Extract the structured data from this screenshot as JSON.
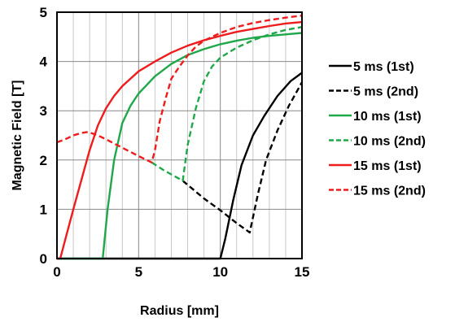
{
  "chart_data": {
    "type": "line",
    "title": "",
    "xlabel": "Radius [mm]",
    "ylabel": "Magnetic Field [T]",
    "xlim": [
      0,
      15
    ],
    "ylim": [
      0,
      5
    ],
    "xticks": [
      "0",
      "5",
      "10",
      "15"
    ],
    "yticks": [
      "0",
      "1",
      "2",
      "3",
      "4",
      "5"
    ],
    "grid": "on",
    "legend_position": "right",
    "series": [
      {
        "name": "5 ms (1st)",
        "color": "#000000",
        "dash": "solid",
        "points": [
          [
            0,
            0
          ],
          [
            10,
            0
          ],
          [
            10.3,
            0.4
          ],
          [
            10.8,
            1.2
          ],
          [
            11.3,
            1.9
          ],
          [
            12,
            2.5
          ],
          [
            12.7,
            2.9
          ],
          [
            13.5,
            3.3
          ],
          [
            14.3,
            3.6
          ],
          [
            15,
            3.77
          ]
        ]
      },
      {
        "name": "5 ms (2nd)",
        "color": "#000000",
        "dash": "dashed",
        "points": [
          [
            7.7,
            1.58
          ],
          [
            9,
            1.22
          ],
          [
            10,
            0.98
          ],
          [
            11,
            0.72
          ],
          [
            11.8,
            0.53
          ],
          [
            12.3,
            1.3
          ],
          [
            12.8,
            2.0
          ],
          [
            13.5,
            2.6
          ],
          [
            14.2,
            3.1
          ],
          [
            15,
            3.58
          ]
        ]
      },
      {
        "name": "10 ms (1st)",
        "color": "#1fa84a",
        "dash": "solid",
        "points": [
          [
            0,
            0
          ],
          [
            2.8,
            0
          ],
          [
            3.1,
            1.0
          ],
          [
            3.5,
            2.0
          ],
          [
            4,
            2.75
          ],
          [
            4.5,
            3.1
          ],
          [
            5,
            3.35
          ],
          [
            6,
            3.7
          ],
          [
            7,
            3.95
          ],
          [
            8,
            4.13
          ],
          [
            9,
            4.25
          ],
          [
            10,
            4.35
          ],
          [
            11,
            4.42
          ],
          [
            12,
            4.48
          ],
          [
            13,
            4.52
          ],
          [
            14,
            4.55
          ],
          [
            15,
            4.58
          ]
        ]
      },
      {
        "name": "10 ms (2nd)",
        "color": "#1fa84a",
        "dash": "dashed",
        "points": [
          [
            5.8,
            1.95
          ],
          [
            6.5,
            1.8
          ],
          [
            7.7,
            1.58
          ],
          [
            8,
            2.3
          ],
          [
            8.5,
            3.05
          ],
          [
            9,
            3.6
          ],
          [
            9.5,
            3.9
          ],
          [
            10,
            4.08
          ],
          [
            11,
            4.28
          ],
          [
            12,
            4.43
          ],
          [
            13,
            4.55
          ],
          [
            14,
            4.64
          ],
          [
            15,
            4.7
          ]
        ]
      },
      {
        "name": "15 ms (1st)",
        "color": "#ee1c1c",
        "dash": "solid",
        "points": [
          [
            0,
            0
          ],
          [
            0.2,
            0
          ],
          [
            0.6,
            0.5
          ],
          [
            1,
            1.0
          ],
          [
            1.5,
            1.6
          ],
          [
            2,
            2.2
          ],
          [
            2.5,
            2.7
          ],
          [
            3,
            3.05
          ],
          [
            3.5,
            3.3
          ],
          [
            4,
            3.5
          ],
          [
            5,
            3.8
          ],
          [
            6,
            4.0
          ],
          [
            7,
            4.18
          ],
          [
            8,
            4.32
          ],
          [
            9,
            4.43
          ],
          [
            10,
            4.52
          ],
          [
            11,
            4.6
          ],
          [
            12,
            4.66
          ],
          [
            13,
            4.72
          ],
          [
            14,
            4.77
          ],
          [
            15,
            4.8
          ]
        ]
      },
      {
        "name": "15 ms (2nd)",
        "color": "#ee1c1c",
        "dash": "dashed",
        "points": [
          [
            0,
            2.36
          ],
          [
            0.5,
            2.42
          ],
          [
            1,
            2.5
          ],
          [
            1.5,
            2.55
          ],
          [
            1.9,
            2.57
          ],
          [
            2.5,
            2.5
          ],
          [
            3,
            2.42
          ],
          [
            4,
            2.25
          ],
          [
            5,
            2.08
          ],
          [
            5.8,
            1.95
          ],
          [
            6,
            2.2
          ],
          [
            6.3,
            2.8
          ],
          [
            6.7,
            3.3
          ],
          [
            7,
            3.65
          ],
          [
            7.5,
            3.9
          ],
          [
            8,
            4.12
          ],
          [
            8.5,
            4.3
          ],
          [
            9,
            4.42
          ],
          [
            10,
            4.58
          ],
          [
            11,
            4.7
          ],
          [
            12,
            4.78
          ],
          [
            13,
            4.84
          ],
          [
            14,
            4.89
          ],
          [
            15,
            4.93
          ]
        ]
      }
    ]
  }
}
